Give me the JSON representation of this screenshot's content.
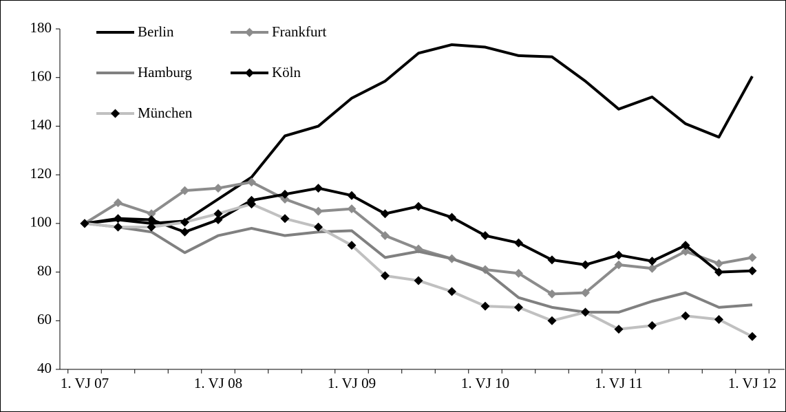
{
  "chart_data": {
    "type": "line",
    "categories": [
      "1. VJ 07",
      null,
      null,
      null,
      "1. VJ 08",
      null,
      null,
      null,
      "1. VJ 09",
      null,
      null,
      null,
      "1. VJ 10",
      null,
      null,
      null,
      "1. VJ 11",
      null,
      null,
      null,
      "1. VJ 12"
    ],
    "series": [
      {
        "name": "Berlin",
        "color": "#000000",
        "values": [
          100,
          101.5,
          100,
          101,
          110,
          119,
          136,
          140,
          151.5,
          158.5,
          170,
          173.5,
          172.5,
          169,
          168.5,
          158.5,
          147,
          152,
          141,
          135.5,
          160.5
        ]
      },
      {
        "name": "Frankfurt",
        "color": "#8c8c8c",
        "marker_color": "#8c8c8c",
        "values": [
          100,
          108.5,
          104,
          113.5,
          114.5,
          117,
          110,
          105,
          106,
          95,
          89.5,
          85.5,
          81,
          79.5,
          71,
          71.5,
          83,
          81.5,
          88.5,
          83.5,
          86
        ]
      },
      {
        "name": "Hamburg",
        "color": "#808080",
        "values": [
          100,
          98.5,
          96.5,
          88,
          95,
          98,
          95,
          96.5,
          97,
          86,
          88.5,
          85.5,
          80.5,
          69.5,
          65.5,
          63.5,
          63.5,
          68,
          71.5,
          65.5,
          66.5
        ]
      },
      {
        "name": "Köln",
        "color": "#000000",
        "marker_color": "#000000",
        "values": [
          100,
          102,
          101.5,
          96.5,
          101.5,
          109.5,
          112,
          114.5,
          111.5,
          104,
          107,
          102.5,
          95,
          92,
          85,
          83,
          87,
          84.5,
          91,
          80,
          80.5
        ]
      },
      {
        "name": "München",
        "color": "#c0c0c0",
        "marker_color": "#000000",
        "values": [
          100,
          98.5,
          98.5,
          100.5,
          104,
          108,
          102,
          98.5,
          91,
          78.5,
          76.5,
          72,
          66,
          65.5,
          60,
          63.5,
          56.5,
          58,
          62,
          60.5,
          53.5
        ]
      }
    ],
    "ylim": [
      40,
      180
    ],
    "yticks": [
      40,
      60,
      80,
      100,
      120,
      140,
      160,
      180
    ]
  }
}
